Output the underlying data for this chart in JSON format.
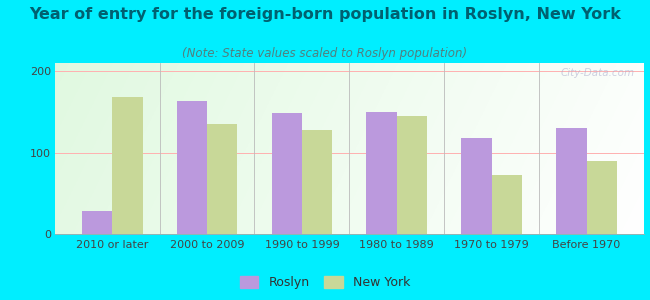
{
  "title": "Year of entry for the foreign-born population in Roslyn, New York",
  "subtitle": "(Note: State values scaled to Roslyn population)",
  "categories": [
    "2010 or later",
    "2000 to 2009",
    "1990 to 1999",
    "1980 to 1989",
    "1970 to 1979",
    "Before 1970"
  ],
  "roslyn_values": [
    28,
    163,
    148,
    150,
    118,
    130
  ],
  "ny_values": [
    168,
    135,
    128,
    145,
    72,
    90
  ],
  "roslyn_color": "#bb99dd",
  "ny_color": "#c8d898",
  "bg_outer": "#00eeff",
  "ylim": [
    0,
    210
  ],
  "yticks": [
    0,
    100,
    200
  ],
  "grid_color": "#ffb0b0",
  "legend_roslyn": "Roslyn",
  "legend_ny": "New York",
  "title_fontsize": 11.5,
  "subtitle_fontsize": 8.5,
  "tick_fontsize": 8,
  "watermark": "City-Data.com",
  "title_color": "#006070",
  "subtitle_color": "#508080",
  "tick_color": "#444444"
}
